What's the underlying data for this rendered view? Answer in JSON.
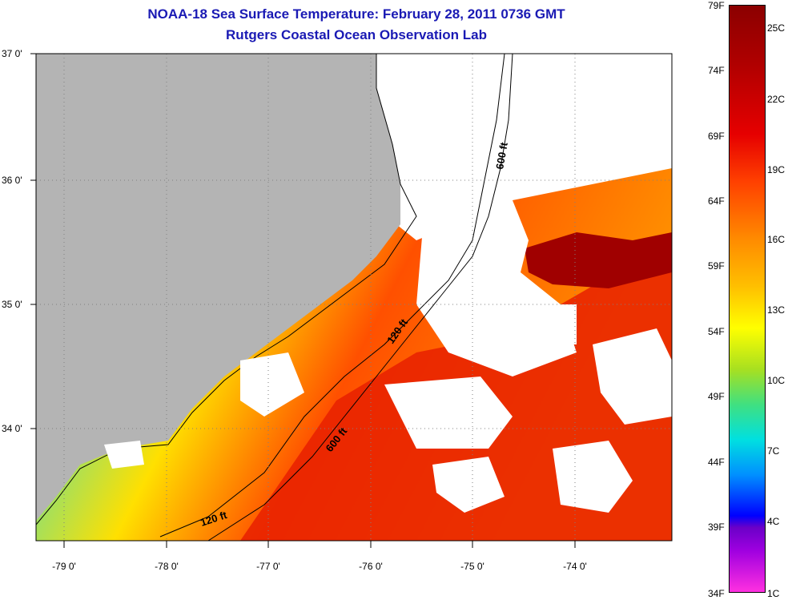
{
  "title": {
    "line1": "NOAA-18 Sea Surface Temperature:  February 28, 2011 0736 GMT",
    "line2": "Rutgers Coastal Ocean Observation Lab"
  },
  "axes": {
    "lat_labels": [
      "37 0'",
      "36 0'",
      "35 0'",
      "34 0'"
    ],
    "lon_labels": [
      "-79 0'",
      "-78 0'",
      "-77 0'",
      "-76 0'",
      "-75 0'",
      "-74 0'"
    ]
  },
  "contours": {
    "label_120_a": "120 ft",
    "label_120_b": "120 ft",
    "label_600_a": "600 ft",
    "label_600_b": "600 ft"
  },
  "colorbar": {
    "f_labels": [
      "79F",
      "74F",
      "69F",
      "64F",
      "59F",
      "54F",
      "49F",
      "44F",
      "39F",
      "34F"
    ],
    "c_labels": [
      "25C",
      "22C",
      "19C",
      "16C",
      "13C",
      "10C",
      "7C",
      "4C",
      "1C"
    ]
  },
  "colors": {
    "land": "#b4b4b4",
    "cloud": "#ffffff",
    "title": "#1a1ab4"
  }
}
